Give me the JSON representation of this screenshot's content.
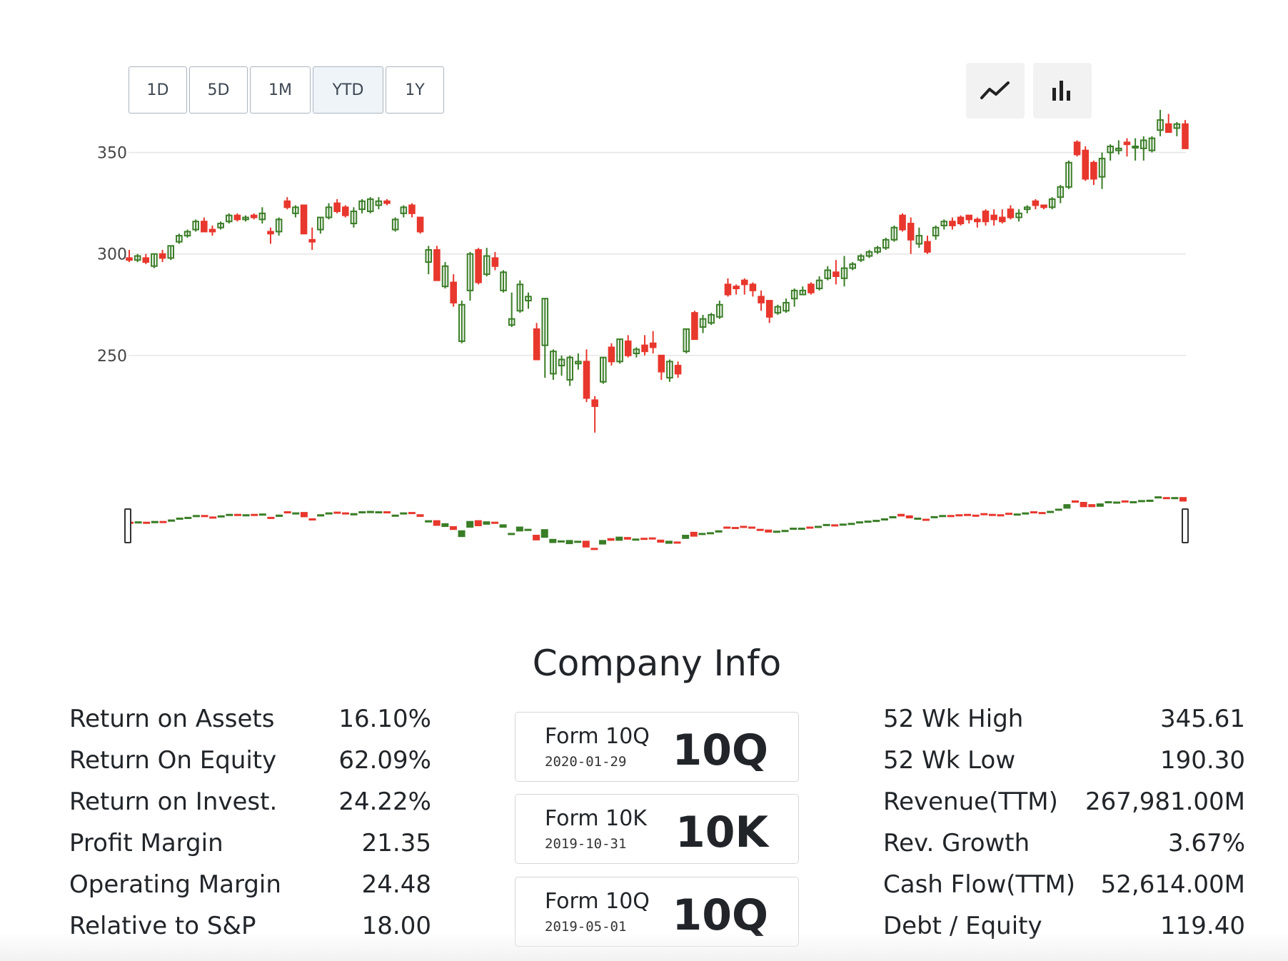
{
  "range_buttons": [
    {
      "label": "1D",
      "active": false
    },
    {
      "label": "5D",
      "active": false
    },
    {
      "label": "1M",
      "active": false
    },
    {
      "label": "YTD",
      "active": true
    },
    {
      "label": "1Y",
      "active": false
    }
  ],
  "chart_type_buttons": [
    {
      "icon": "line-chart-icon"
    },
    {
      "icon": "bar-chart-icon"
    }
  ],
  "colors": {
    "up": "#3a7d27",
    "down": "#e8372d",
    "grid": "#e5e5e5",
    "axis_text": "#444444"
  },
  "chart_data": {
    "type": "candlestick",
    "title": "",
    "xlabel": "",
    "ylabel": "",
    "ylim": [
      200,
      372
    ],
    "y_ticks": [
      250,
      300,
      350
    ],
    "grid": true,
    "navigator": true,
    "candles": [
      [
        298,
        302,
        296,
        297
      ],
      [
        297,
        300,
        296,
        299
      ],
      [
        298,
        300,
        295,
        296
      ],
      [
        294,
        300,
        293,
        300
      ],
      [
        300,
        302,
        296,
        298
      ],
      [
        298,
        304,
        297,
        304
      ],
      [
        306,
        310,
        305,
        309
      ],
      [
        309,
        312,
        308,
        311
      ],
      [
        312,
        317,
        311,
        316
      ],
      [
        316,
        318,
        311,
        311
      ],
      [
        312,
        314,
        309,
        311
      ],
      [
        313,
        316,
        312,
        315
      ],
      [
        316,
        320,
        315,
        319
      ],
      [
        319,
        320,
        316,
        317
      ],
      [
        317,
        319,
        316,
        318
      ],
      [
        319,
        320,
        317,
        318
      ],
      [
        317,
        323,
        315,
        320
      ],
      [
        311,
        313,
        305,
        310
      ],
      [
        311,
        318,
        309,
        317
      ],
      [
        326,
        328,
        322,
        323
      ],
      [
        320,
        324,
        318,
        323
      ],
      [
        324,
        324,
        310,
        310
      ],
      [
        307,
        313,
        302,
        306
      ],
      [
        312,
        318,
        310,
        318
      ],
      [
        318,
        325,
        317,
        323
      ],
      [
        325,
        327,
        320,
        321
      ],
      [
        323,
        324,
        318,
        319
      ],
      [
        315,
        323,
        313,
        321
      ],
      [
        322,
        327,
        320,
        326
      ],
      [
        321,
        328,
        320,
        327
      ],
      [
        324,
        328,
        322,
        326
      ],
      [
        326,
        327,
        324,
        325
      ],
      [
        312,
        318,
        311,
        317
      ],
      [
        320,
        324,
        318,
        323
      ],
      [
        324,
        325,
        318,
        320
      ],
      [
        318,
        318,
        310,
        311
      ],
      [
        296,
        304,
        290,
        302
      ],
      [
        302,
        304,
        288,
        287
      ],
      [
        284,
        296,
        283,
        294
      ],
      [
        286,
        290,
        274,
        276
      ],
      [
        257,
        277,
        256,
        275
      ],
      [
        282,
        301,
        277,
        300
      ],
      [
        302,
        303,
        285,
        286
      ],
      [
        290,
        303,
        289,
        299
      ],
      [
        298,
        301,
        292,
        294
      ],
      [
        282,
        292,
        281,
        291
      ],
      [
        265,
        281,
        264,
        268
      ],
      [
        272,
        287,
        271,
        285
      ],
      [
        277,
        281,
        273,
        279
      ],
      [
        263,
        266,
        248,
        248
      ],
      [
        255,
        278,
        239,
        278
      ],
      [
        241,
        253,
        238,
        252
      ],
      [
        245,
        250,
        240,
        248
      ],
      [
        238,
        250,
        235,
        249
      ],
      [
        246,
        251,
        243,
        247
      ],
      [
        247,
        253,
        227,
        229
      ],
      [
        228,
        230,
        212,
        225
      ],
      [
        237,
        249,
        236,
        249
      ],
      [
        254,
        256,
        245,
        247
      ],
      [
        247,
        258,
        246,
        258
      ],
      [
        257,
        260,
        249,
        250
      ],
      [
        251,
        254,
        249,
        253
      ],
      [
        255,
        260,
        250,
        252
      ],
      [
        256,
        262,
        251,
        254
      ],
      [
        250,
        250,
        238,
        242
      ],
      [
        239,
        248,
        237,
        247
      ],
      [
        245,
        247,
        239,
        241
      ],
      [
        252,
        263,
        251,
        263
      ],
      [
        271,
        272,
        259,
        258
      ],
      [
        264,
        270,
        261,
        268
      ],
      [
        266,
        271,
        265,
        270
      ],
      [
        269,
        277,
        268,
        275
      ],
      [
        285,
        288,
        279,
        280
      ],
      [
        284,
        285,
        280,
        283
      ],
      [
        287,
        288,
        280,
        285
      ],
      [
        285,
        286,
        279,
        282
      ],
      [
        279,
        282,
        272,
        276
      ],
      [
        277,
        277,
        266,
        269
      ],
      [
        271,
        275,
        270,
        274
      ],
      [
        272,
        278,
        271,
        276
      ],
      [
        278,
        283,
        274,
        282
      ],
      [
        280,
        284,
        280,
        282
      ],
      [
        285,
        286,
        280,
        281
      ],
      [
        283,
        289,
        282,
        287
      ],
      [
        288,
        294,
        287,
        292
      ],
      [
        291,
        297,
        285,
        289
      ],
      [
        288,
        299,
        284,
        293
      ],
      [
        293,
        296,
        292,
        295
      ],
      [
        297,
        300,
        296,
        299
      ],
      [
        299,
        302,
        298,
        301
      ],
      [
        301,
        304,
        300,
        303
      ],
      [
        303,
        308,
        302,
        307
      ],
      [
        307,
        314,
        306,
        313
      ],
      [
        319,
        320,
        311,
        312
      ],
      [
        315,
        318,
        300,
        307
      ],
      [
        305,
        313,
        303,
        309
      ],
      [
        306,
        309,
        300,
        301
      ],
      [
        309,
        314,
        307,
        313
      ],
      [
        314,
        317,
        312,
        316
      ],
      [
        316,
        318,
        312,
        314
      ],
      [
        318,
        319,
        314,
        315
      ],
      [
        319,
        319,
        315,
        317
      ],
      [
        317,
        318,
        313,
        316
      ],
      [
        321,
        322,
        314,
        316
      ],
      [
        319,
        322,
        314,
        317
      ],
      [
        318,
        322,
        315,
        316
      ],
      [
        322,
        324,
        317,
        318
      ],
      [
        318,
        322,
        316,
        320
      ],
      [
        322,
        324,
        320,
        323
      ],
      [
        326,
        327,
        322,
        324
      ],
      [
        324,
        324,
        322,
        323
      ],
      [
        323,
        328,
        322,
        327
      ],
      [
        328,
        334,
        325,
        333
      ],
      [
        333,
        346,
        332,
        345
      ],
      [
        355,
        356,
        348,
        349
      ],
      [
        351,
        353,
        336,
        337
      ],
      [
        345,
        346,
        334,
        337
      ],
      [
        338,
        350,
        332,
        347
      ],
      [
        350,
        354,
        346,
        353
      ],
      [
        351,
        356,
        349,
        352
      ],
      [
        355,
        357,
        348,
        354
      ],
      [
        353,
        357,
        346,
        353
      ],
      [
        352,
        358,
        346,
        356
      ],
      [
        351,
        358,
        350,
        357
      ],
      [
        361,
        371,
        358,
        366
      ],
      [
        364,
        369,
        360,
        360
      ],
      [
        362,
        365,
        358,
        364
      ],
      [
        364,
        366,
        353,
        352
      ]
    ]
  },
  "company_info": {
    "title": "Company Info",
    "left_stats": [
      {
        "label": "Return on Assets",
        "value": "16.10%"
      },
      {
        "label": "Return On Equity",
        "value": "62.09%"
      },
      {
        "label": "Return on Invest.",
        "value": "24.22%"
      },
      {
        "label": "Profit Margin",
        "value": "21.35"
      },
      {
        "label": "Operating Margin",
        "value": "24.48"
      },
      {
        "label": "Relative to S&P",
        "value": "18.00"
      }
    ],
    "filings": [
      {
        "title": "Form 10Q",
        "date": "2020-01-29",
        "code": "10Q"
      },
      {
        "title": "Form 10K",
        "date": "2019-10-31",
        "code": "10K"
      },
      {
        "title": "Form 10Q",
        "date": "2019-05-01",
        "code": "10Q"
      }
    ],
    "right_stats": [
      {
        "label": "52 Wk High",
        "value": "345.61"
      },
      {
        "label": "52 Wk Low",
        "value": "190.30"
      },
      {
        "label": "Revenue(TTM)",
        "value": "267,981.00M"
      },
      {
        "label": "Rev. Growth",
        "value": "3.67%"
      },
      {
        "label": "Cash Flow(TTM)",
        "value": "52,614.00M"
      },
      {
        "label": "Debt / Equity",
        "value": "119.40"
      }
    ]
  }
}
